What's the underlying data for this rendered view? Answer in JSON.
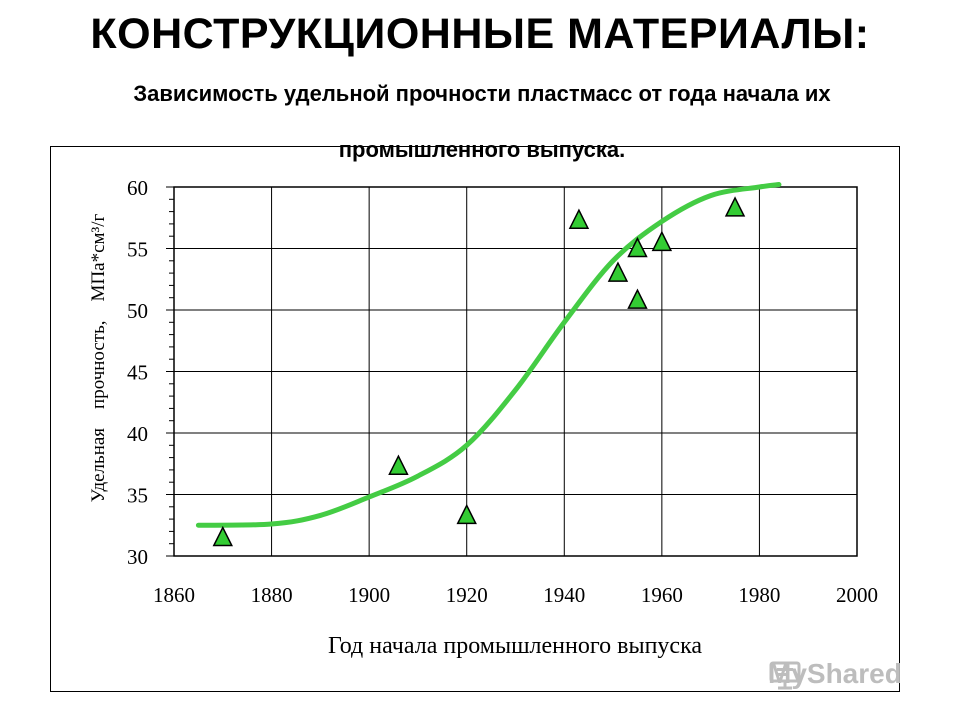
{
  "header": {
    "title": "КОНСТРУКЦИОННЫЕ МАТЕРИАЛЫ:",
    "subtitle": "Зависимость удельной прочности пластмасс  от года начала их промышленного выпуска."
  },
  "watermark": {
    "text": "MyShared",
    "icon": "presentation-board-icon"
  },
  "chart_data": {
    "type": "scatter",
    "title": "",
    "xlabel": "Год начала промышленного выпуска",
    "ylabel": "Удельная    прочность,    МПа*см³/г",
    "xlim": [
      1860,
      2000
    ],
    "ylim": [
      30,
      60
    ],
    "xticks": [
      1860,
      1880,
      1900,
      1920,
      1940,
      1960,
      1980,
      2000
    ],
    "yticks": [
      30,
      35,
      40,
      45,
      50,
      55,
      60
    ],
    "grid": true,
    "colors": {
      "marker": "#33cc33",
      "curve": "#44cc44",
      "grid": "#000000"
    },
    "series": [
      {
        "marker": "triangle",
        "x": [
          1870,
          1906,
          1920,
          1943,
          1951,
          1955,
          1955,
          1960,
          1975
        ],
        "y": [
          31.5,
          37.3,
          33.3,
          57.3,
          53.0,
          55.0,
          50.8,
          55.5,
          58.3
        ]
      },
      {
        "line": "trend",
        "x": [
          1865,
          1880,
          1890,
          1900,
          1910,
          1920,
          1930,
          1940,
          1950,
          1960,
          1970,
          1980,
          1984
        ],
        "y": [
          32.5,
          32.6,
          33.3,
          34.8,
          36.5,
          39.0,
          43.5,
          49.0,
          54.0,
          57.2,
          59.3,
          60.0,
          60.2
        ]
      }
    ]
  }
}
